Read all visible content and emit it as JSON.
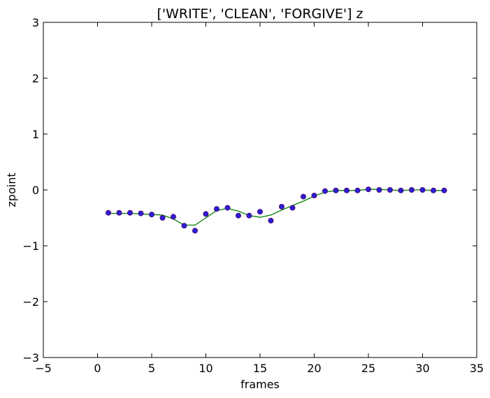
{
  "chart_data": {
    "type": "scatter",
    "title": "['WRITE', 'CLEAN', 'FORGIVE'] z",
    "xlabel": "frames",
    "ylabel": "zpoint",
    "xlim": [
      -5,
      35
    ],
    "ylim": [
      -3,
      3
    ],
    "xticks": [
      -5,
      0,
      5,
      10,
      15,
      20,
      25,
      30,
      35
    ],
    "yticks": [
      -3,
      -2,
      -1,
      0,
      1,
      2,
      3
    ],
    "xtick_labels": [
      "−5",
      "0",
      "5",
      "10",
      "15",
      "20",
      "25",
      "30",
      "35"
    ],
    "ytick_labels": [
      "−3",
      "−2",
      "−1",
      "0",
      "1",
      "2",
      "3"
    ],
    "grid": false,
    "series": [
      {
        "kind": "scatter",
        "color": "#2a1fd6",
        "edge_color": "#550066",
        "x": [
          1,
          2,
          3,
          4,
          5,
          6,
          7,
          8,
          9,
          10,
          11,
          12,
          13,
          14,
          15,
          16,
          17,
          18,
          19,
          20,
          21,
          22,
          23,
          24,
          25,
          26,
          27,
          28,
          29,
          30,
          31,
          32
        ],
        "y": [
          -0.41,
          -0.41,
          -0.41,
          -0.42,
          -0.44,
          -0.5,
          -0.48,
          -0.64,
          -0.73,
          -0.43,
          -0.34,
          -0.32,
          -0.46,
          -0.46,
          -0.39,
          -0.55,
          -0.3,
          -0.32,
          -0.12,
          -0.1,
          -0.02,
          -0.01,
          -0.01,
          -0.01,
          0.01,
          0.0,
          0.0,
          -0.01,
          0.0,
          0.0,
          -0.01,
          -0.01
        ]
      },
      {
        "kind": "line",
        "color": "#008000",
        "x": [
          1,
          2,
          3,
          4,
          5,
          6,
          7,
          8,
          9,
          10,
          11,
          12,
          13,
          14,
          15,
          16,
          17,
          18,
          19,
          20,
          21,
          22,
          23,
          24,
          25,
          26,
          27,
          28,
          29,
          30,
          31,
          32
        ],
        "y": [
          -0.42,
          -0.42,
          -0.42,
          -0.43,
          -0.44,
          -0.45,
          -0.52,
          -0.63,
          -0.63,
          -0.5,
          -0.37,
          -0.33,
          -0.38,
          -0.46,
          -0.49,
          -0.45,
          -0.36,
          -0.28,
          -0.2,
          -0.11,
          -0.04,
          -0.01,
          -0.01,
          -0.01,
          0.01,
          0.01,
          0.0,
          -0.01,
          0.0,
          0.0,
          -0.01,
          -0.01
        ]
      }
    ]
  }
}
